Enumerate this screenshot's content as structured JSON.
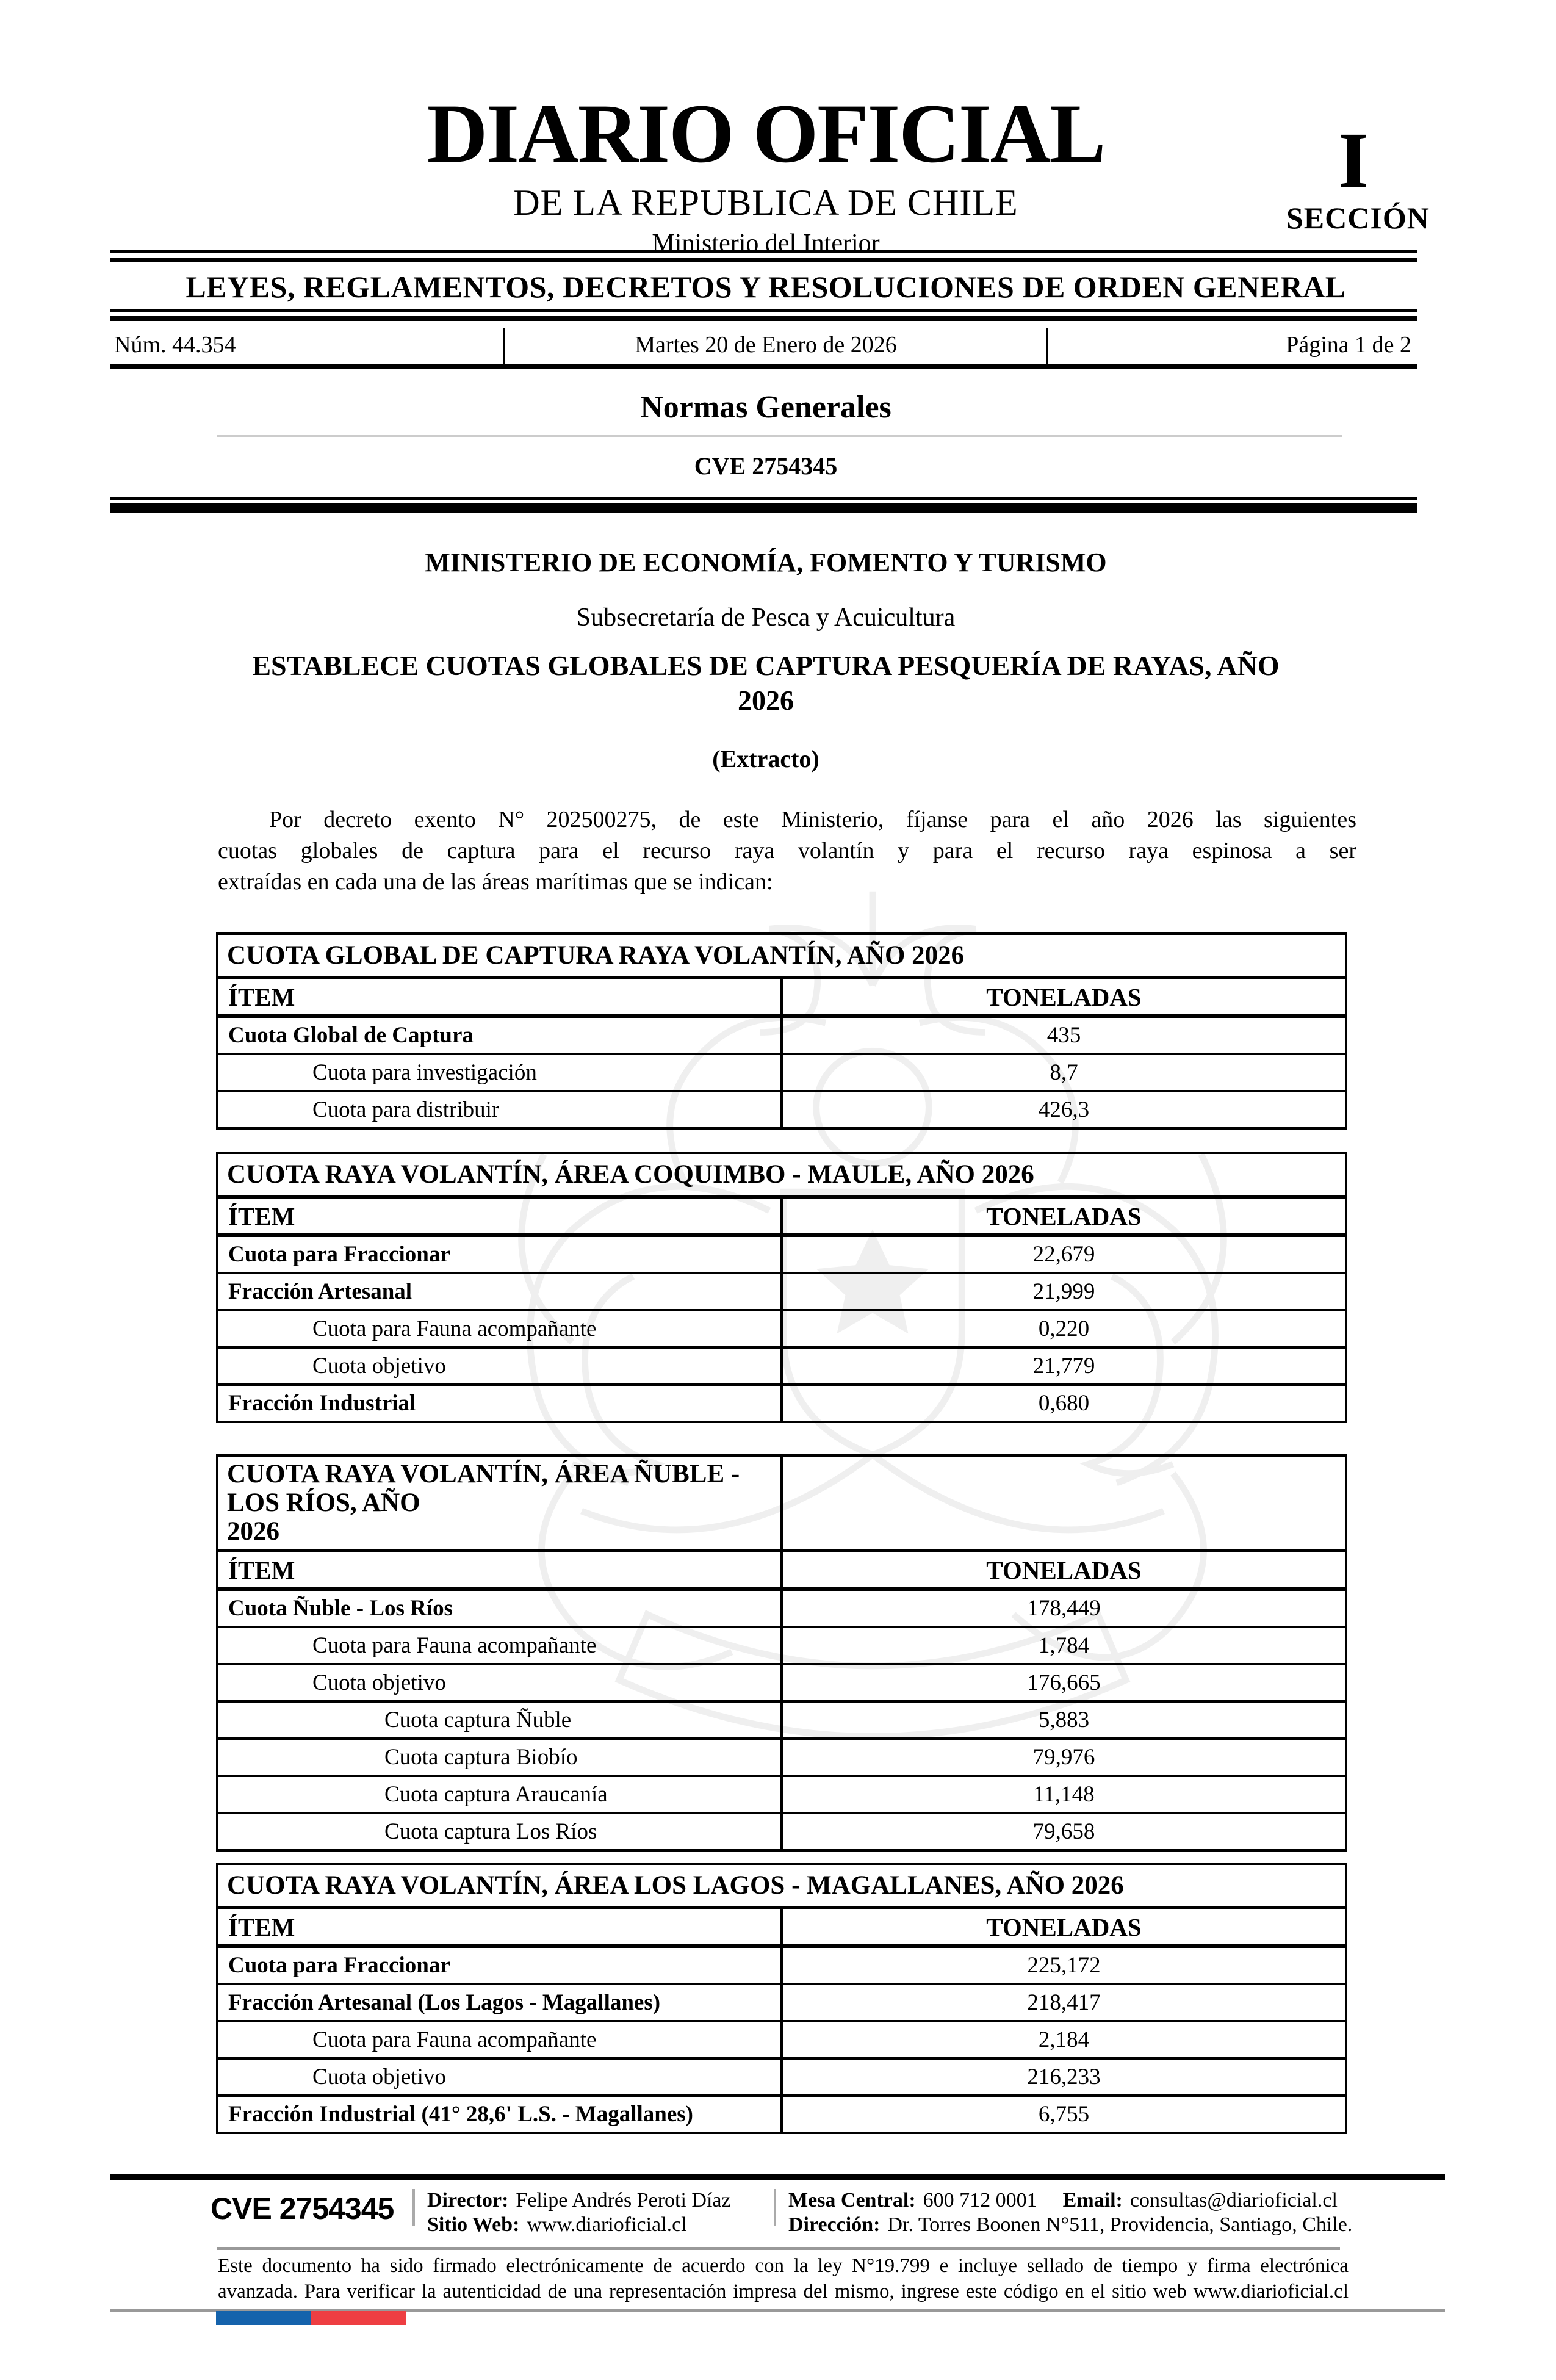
{
  "masthead": {
    "title": "DIARIO OFICIAL",
    "subtitle": "DE LA REPUBLICA DE CHILE",
    "ministry": "Ministerio del Interior",
    "section_numeral": "I",
    "section_label": "SECCIÓN"
  },
  "banner": {
    "text": "LEYES, REGLAMENTOS, DECRETOS Y RESOLUCIONES DE ORDEN GENERAL"
  },
  "issue_bar": {
    "number": "Núm. 44.354",
    "date": "Martes 20 de Enero de 2026",
    "page_info": "Página 1 de 2"
  },
  "section_heading": "Normas Generales",
  "cve_heading": "CVE 2754345",
  "article": {
    "ministry_heading": "MINISTERIO DE ECONOMÍA, FOMENTO Y TURISMO",
    "subsecretary": "Subsecretaría de Pesca y Acuicultura",
    "decree_title_lines": [
      "ESTABLECE CUOTAS GLOBALES DE CAPTURA PESQUERÍA DE RAYAS, AÑO",
      "2026"
    ],
    "extract_label": "(Extracto)",
    "body_paragraph_lines": [
      "Por decreto exento N° 202500275, de este Ministerio, fíjanse para el año 2026 las siguientes",
      "cuotas globales de captura para el recurso raya volantín y para el recurso raya espinosa a ser",
      "extraídas en cada una de las áreas marítimas que se indican:"
    ]
  },
  "tables": [
    {
      "title_lines": [
        "CUOTA GLOBAL DE CAPTURA RAYA VOLANTÍN, AÑO 2026"
      ],
      "split_title_row": false,
      "header": [
        "ÍTEM",
        "TONELADAS"
      ],
      "rows": [
        {
          "label": "Cuota Global de Captura",
          "value": "435",
          "indent": 0
        },
        {
          "label": "Cuota para investigación",
          "value": "8,7",
          "indent": 1
        },
        {
          "label": "Cuota para distribuir",
          "value": "426,3",
          "indent": 1
        }
      ]
    },
    {
      "title_lines": [
        "CUOTA RAYA VOLANTÍN, ÁREA COQUIMBO - MAULE, AÑO 2026"
      ],
      "split_title_row": false,
      "header": [
        "ÍTEM",
        "TONELADAS"
      ],
      "rows": [
        {
          "label": "Cuota para Fraccionar",
          "value": "22,679",
          "indent": 0
        },
        {
          "label": "Fracción Artesanal",
          "value": "21,999",
          "indent": 0
        },
        {
          "label": "Cuota para Fauna acompañante",
          "value": "0,220",
          "indent": 1
        },
        {
          "label": "Cuota objetivo",
          "value": "21,779",
          "indent": 1
        },
        {
          "label": "Fracción Industrial",
          "value": "0,680",
          "indent": 0
        }
      ]
    },
    {
      "title_lines": [
        "CUOTA RAYA VOLANTÍN, ÁREA ÑUBLE - LOS RÍOS, AÑO",
        "2026"
      ],
      "split_title_row": true,
      "header": [
        "ÍTEM",
        "TONELADAS"
      ],
      "rows": [
        {
          "label": "Cuota Ñuble - Los Ríos",
          "value": "178,449",
          "indent": 0
        },
        {
          "label": "Cuota para Fauna acompañante",
          "value": "1,784",
          "indent": 1
        },
        {
          "label": "Cuota objetivo",
          "value": "176,665",
          "indent": 1
        },
        {
          "label": "Cuota captura Ñuble",
          "value": "5,883",
          "indent": 2
        },
        {
          "label": "Cuota captura Biobío",
          "value": "79,976",
          "indent": 2
        },
        {
          "label": "Cuota captura Araucanía",
          "value": "11,148",
          "indent": 2
        },
        {
          "label": "Cuota captura Los Ríos",
          "value": "79,658",
          "indent": 2
        }
      ]
    },
    {
      "title_lines": [
        "CUOTA RAYA VOLANTÍN, ÁREA LOS LAGOS - MAGALLANES, AÑO 2026"
      ],
      "split_title_row": false,
      "header": [
        "ÍTEM",
        "TONELADAS"
      ],
      "rows": [
        {
          "label": "Cuota para Fraccionar",
          "value": "225,172",
          "indent": 0
        },
        {
          "label": "Fracción Artesanal (Los Lagos - Magallanes)",
          "value": "218,417",
          "indent": 0
        },
        {
          "label": "Cuota para Fauna acompañante",
          "value": "2,184",
          "indent": 1
        },
        {
          "label": "Cuota objetivo",
          "value": "216,233",
          "indent": 1
        },
        {
          "label": "Fracción Industrial (41° 28,6' L.S. - Magallanes)",
          "value": "6,755",
          "indent": 0
        }
      ]
    }
  ],
  "footer": {
    "cve": "CVE 2754345",
    "director_label": "Director:",
    "director": "Felipe Andrés Peroti Díaz",
    "website_label": "Sitio Web:",
    "website": "www.diarioficial.cl",
    "phone_label": "Mesa Central:",
    "phone": "600 712 0001",
    "email_label": "Email:",
    "email": "consultas@diarioficial.cl",
    "address_label": "Dirección:",
    "address": "Dr. Torres Boonen N°511, Providencia, Santiago, Chile.",
    "legal_note_lines": [
      "Este documento ha sido firmado electrónicamente de acuerdo con la ley N°19.799 e incluye sellado de tiempo y firma electrónica",
      "avanzada. Para verificar la autenticidad de una representación impresa del mismo, ingrese este código en el sitio web www.diarioficial.cl"
    ],
    "flag_colors": {
      "blue": "#1563ac",
      "red": "#ee3e42"
    }
  }
}
